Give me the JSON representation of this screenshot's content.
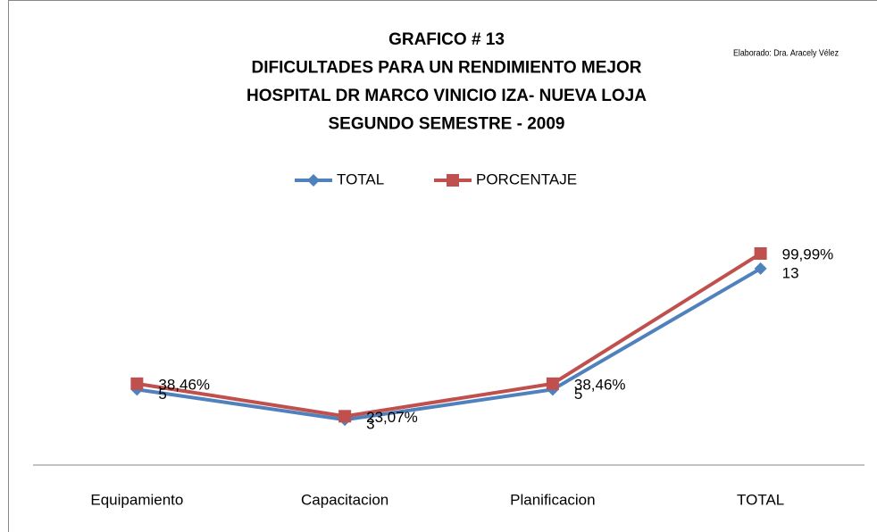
{
  "chart_data": {
    "type": "line",
    "title": [
      "GRAFICO # 13",
      "DIFICULTADES PARA UN RENDIMIENTO MEJOR",
      "HOSPITAL DR MARCO VINICIO IZA- NUEVA LOJA",
      "SEGUNDO SEMESTRE - 2009"
    ],
    "annotation": "Elaborado: Dra. Aracely Vélez",
    "categories": [
      "Equipamiento",
      "Capacitacion",
      "Planificacion",
      "TOTAL"
    ],
    "series": [
      {
        "name": "TOTAL",
        "color": "#4f81bd",
        "values": [
          5,
          3,
          5,
          13
        ]
      },
      {
        "name": "PORCENTAJE",
        "color": "#c0504d",
        "axis": "y2",
        "values": [
          38.46,
          23.07,
          38.46,
          99.99
        ],
        "value_labels": [
          "38,46%",
          "23,07%",
          "38,46%",
          "99,99%"
        ]
      }
    ],
    "ylim": [
      0,
      14
    ],
    "y2lim": [
      0,
      100
    ],
    "legend": "top"
  }
}
